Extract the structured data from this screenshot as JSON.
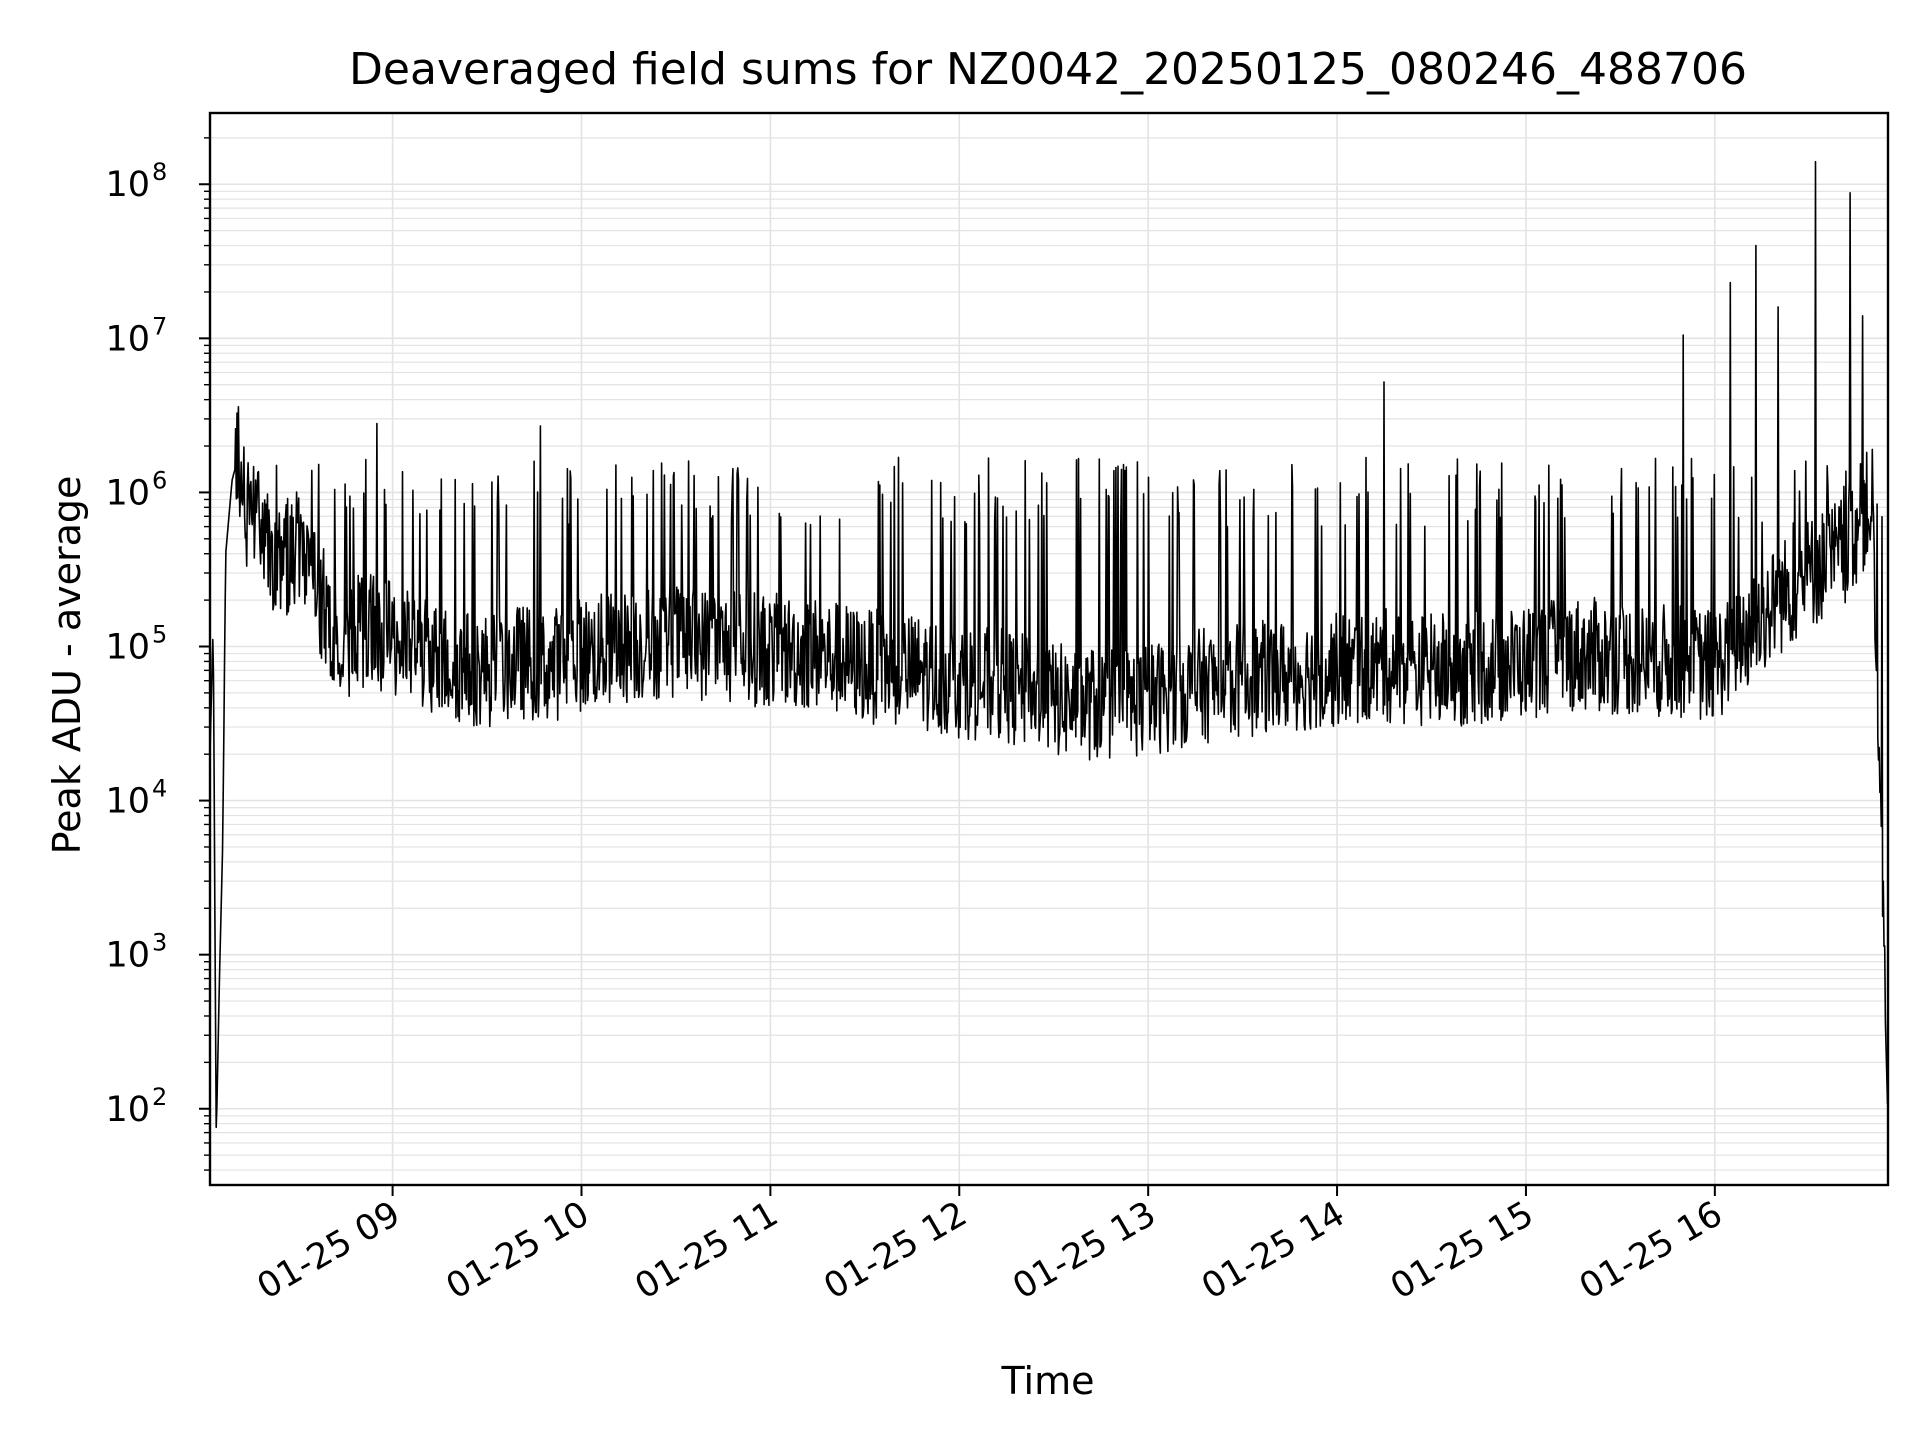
{
  "chart_data": {
    "type": "line",
    "title": "Deaveraged field sums for NZ0042_20250125_080246_488706",
    "xlabel": "Time",
    "ylabel": "Peak ADU - average",
    "x_scale": "time",
    "y_scale": "log",
    "xlim": [
      "2025-01-25 08:02",
      "2025-01-25 16:55"
    ],
    "ylim": [
      32,
      290000000
    ],
    "grid": true,
    "legend": "none",
    "line_color": "#000000",
    "grid_color": "#e3e3e3",
    "x_ticks": [
      {
        "value": "2025-01-25 09:00",
        "label": "01-25 09"
      },
      {
        "value": "2025-01-25 10:00",
        "label": "01-25 10"
      },
      {
        "value": "2025-01-25 11:00",
        "label": "01-25 11"
      },
      {
        "value": "2025-01-25 12:00",
        "label": "01-25 12"
      },
      {
        "value": "2025-01-25 13:00",
        "label": "01-25 13"
      },
      {
        "value": "2025-01-25 14:00",
        "label": "01-25 14"
      },
      {
        "value": "2025-01-25 15:00",
        "label": "01-25 15"
      },
      {
        "value": "2025-01-25 16:00",
        "label": "01-25 16"
      }
    ],
    "y_ticks": [
      {
        "value": 100,
        "base": "10",
        "exp": "2"
      },
      {
        "value": 1000,
        "base": "10",
        "exp": "3"
      },
      {
        "value": 10000,
        "base": "10",
        "exp": "4"
      },
      {
        "value": 100000,
        "base": "10",
        "exp": "5"
      },
      {
        "value": 1000000,
        "base": "10",
        "exp": "6"
      },
      {
        "value": 10000000,
        "base": "10",
        "exp": "7"
      },
      {
        "value": 100000000,
        "base": "10",
        "exp": "8"
      }
    ],
    "series": [
      {
        "x": [
          "2025-01-25 08:02",
          "2025-01-25 08:03",
          "2025-01-25 08:04",
          "2025-01-25 08:05",
          "2025-01-25 08:06",
          "2025-01-25 08:07",
          "2025-01-25 08:09",
          "2025-01-25 08:11",
          "2025-01-25 08:13",
          "2025-01-25 08:15",
          "2025-01-25 08:17",
          "2025-01-25 08:20",
          "2025-01-25 08:25",
          "2025-01-25 08:30",
          "2025-01-25 08:35",
          "2025-01-25 08:40",
          "2025-01-25 08:45",
          "2025-01-25 08:50",
          "2025-01-25 08:55",
          "2025-01-25 09:00",
          "2025-01-25 09:10",
          "2025-01-25 09:20",
          "2025-01-25 09:30",
          "2025-01-25 09:40",
          "2025-01-25 09:50",
          "2025-01-25 10:00",
          "2025-01-25 10:15",
          "2025-01-25 10:30",
          "2025-01-25 10:45",
          "2025-01-25 11:00",
          "2025-01-25 11:15",
          "2025-01-25 11:30",
          "2025-01-25 11:45",
          "2025-01-25 12:00",
          "2025-01-25 12:15",
          "2025-01-25 12:30",
          "2025-01-25 12:45",
          "2025-01-25 13:00",
          "2025-01-25 13:15",
          "2025-01-25 13:30",
          "2025-01-25 13:45",
          "2025-01-25 14:00",
          "2025-01-25 14:15",
          "2025-01-25 14:30",
          "2025-01-25 14:45",
          "2025-01-25 15:00",
          "2025-01-25 15:15",
          "2025-01-25 15:30",
          "2025-01-25 15:45",
          "2025-01-25 16:00",
          "2025-01-25 16:10",
          "2025-01-25 16:20",
          "2025-01-25 16:30",
          "2025-01-25 16:40",
          "2025-01-25 16:45",
          "2025-01-25 16:50",
          "2025-01-25 16:55"
        ],
        "y": [
          20000,
          140000,
          65,
          700,
          5000,
          400000,
          1200000,
          1700000,
          800000,
          500000,
          600000,
          450000,
          350000,
          400000,
          250000,
          150000,
          100000,
          130000,
          120000,
          110000,
          90000,
          75000,
          70000,
          80000,
          75000,
          90000,
          100000,
          110000,
          100000,
          95000,
          90000,
          75000,
          70000,
          60000,
          55000,
          45000,
          42000,
          45000,
          55000,
          60000,
          65000,
          70000,
          75000,
          70000,
          72000,
          80000,
          90000,
          85000,
          80000,
          75000,
          120000,
          200000,
          300000,
          400000,
          600000,
          900000,
          80
        ]
      }
    ],
    "spikes": [
      {
        "x": "2025-01-25 08:55",
        "y": 2800000
      },
      {
        "x": "2025-01-25 09:47",
        "y": 2700000
      },
      {
        "x": "2025-01-25 14:15",
        "y": 5200000
      },
      {
        "x": "2025-01-25 15:50",
        "y": 10500000
      },
      {
        "x": "2025-01-25 16:05",
        "y": 23000000
      },
      {
        "x": "2025-01-25 16:13",
        "y": 40000000
      },
      {
        "x": "2025-01-25 16:20",
        "y": 16000000
      },
      {
        "x": "2025-01-25 16:32",
        "y": 140000000
      },
      {
        "x": "2025-01-25 16:43",
        "y": 88000000
      },
      {
        "x": "2025-01-25 16:47",
        "y": 14000000
      }
    ]
  }
}
